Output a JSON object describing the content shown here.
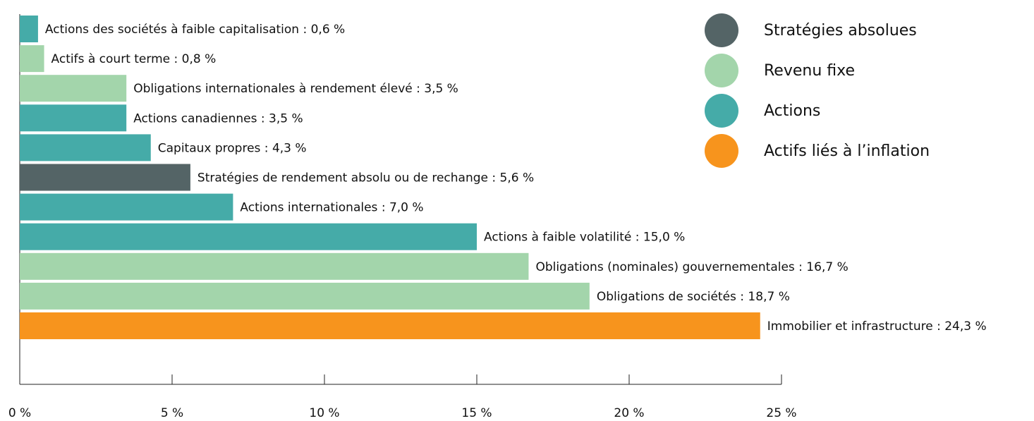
{
  "chart_data": {
    "type": "barh",
    "values": [
      0.6,
      0.8,
      3.5,
      3.5,
      4.3,
      5.6,
      7.0,
      15.0,
      16.7,
      18.7,
      24.3
    ],
    "value_labels": [
      "Actions des sociétés à faible capitalisation : 0,6 %",
      "Actifs à court terme : 0,8 %",
      "Obligations internationales à rendement élevé : 3,5 %",
      "Actions canadiennes : 3,5 %",
      "Capitaux propres : 4,3 %",
      "Stratégies de rendement absolu ou de rechange : 5,6 %",
      "Actions internationales : 7,0 %",
      "Actions à faible volatilité : 15,0 %",
      "Obligations (nominales) gouvernementales : 16,7 %",
      "Obligations de sociétés : 18,7 %",
      "Immobilier et infrastructure : 24,3 %"
    ],
    "colors": [
      "#45aba8",
      "#a3d5ab",
      "#a3d5ab",
      "#45aba8",
      "#45aba8",
      "#546466",
      "#45aba8",
      "#45aba8",
      "#a3d5ab",
      "#a3d5ab",
      "#f7941d"
    ],
    "legend": [
      {
        "name": "Stratégies absolues",
        "color": "#546466"
      },
      {
        "name": "Revenu fixe",
        "color": "#a3d5ab"
      },
      {
        "name": "Actions",
        "color": "#45aba8"
      },
      {
        "name": "Actifs liés à l’inflation",
        "color": "#f7941d"
      }
    ],
    "xlim": [
      0,
      25
    ],
    "xticks": [
      {
        "value": 0,
        "label": "0 %"
      },
      {
        "value": 5,
        "label": "5 %"
      },
      {
        "value": 10,
        "label": "10 %"
      },
      {
        "value": 15,
        "label": "15 %"
      },
      {
        "value": 20,
        "label": "20 %"
      },
      {
        "value": 25,
        "label": "25 %"
      }
    ]
  }
}
